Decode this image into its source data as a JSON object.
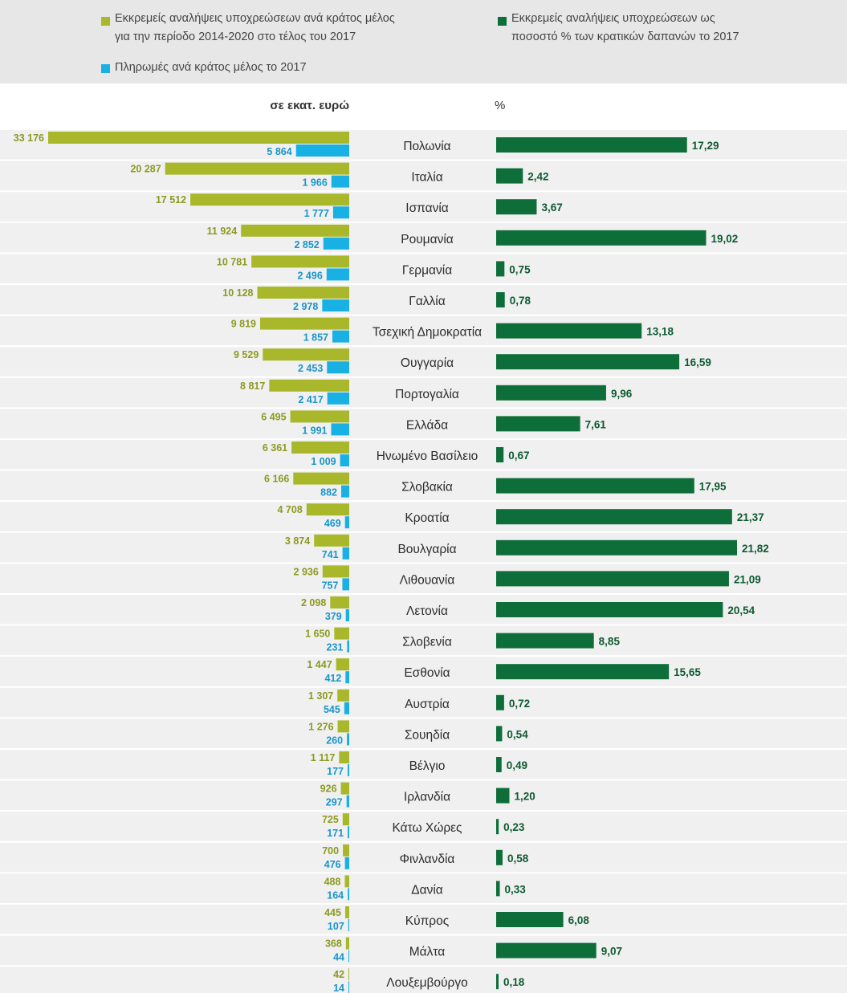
{
  "colors": {
    "commitments": "#a9b82b",
    "payments": "#19b0e3",
    "percent": "#0e6e3a",
    "band": "#e7e7e8",
    "row_separator": "#ffffff",
    "row_background": "#f0f0f1",
    "label_commitments": "#8c9a1f",
    "label_payments": "#1995c9",
    "label_percent": "#0e5a30"
  },
  "legend": {
    "commitments_label": "Εκκρεμείς αναλήψεις υποχρεώσεων ανά κράτος μέλος για την περίοδο 2014-2020 στο τέλος του 2017",
    "payments_label": "Πληρωμές ανά κράτος μέλος το 2017",
    "percent_label": "Εκκρεμείς αναλήψεις υποχρεώσεων ως ποσοστό % των κρατικών δαπανών το 2017"
  },
  "units": {
    "left": "σε εκατ. ευρώ",
    "right": "%"
  },
  "chart_data": {
    "type": "bar",
    "orientation": "horizontal",
    "categories": [
      "Πολωνία",
      "Ιταλία",
      "Ισπανία",
      "Ρουμανία",
      "Γερμανία",
      "Γαλλία",
      "Τσεχική Δημοκρατία",
      "Ουγγαρία",
      "Πορτογαλία",
      "Ελλάδα",
      "Ηνωμένο Βασίλειο",
      "Σλοβακία",
      "Κροατία",
      "Βουλγαρία",
      "Λιθουανία",
      "Λετονία",
      "Σλοβενία",
      "Εσθονία",
      "Αυστρία",
      "Σουηδία",
      "Βέλγιο",
      "Ιρλανδία",
      "Κάτω Χώρες",
      "Φινλανδία",
      "Δανία",
      "Κύπρος",
      "Μάλτα",
      "Λουξεμβούργο"
    ],
    "series": [
      {
        "name": "Εκκρεμείς αναλήψεις υποχρεώσεων ανά κράτος μέλος για την περίοδο 2014-2020 στο τέλος του 2017",
        "unit": "σε εκατ. ευρώ",
        "values": [
          33176,
          20287,
          17512,
          11924,
          10781,
          10128,
          9819,
          9529,
          8817,
          6495,
          6361,
          6166,
          4708,
          3874,
          2936,
          2098,
          1650,
          1447,
          1307,
          1276,
          1117,
          926,
          725,
          700,
          488,
          445,
          368,
          42
        ],
        "labels": [
          "33 176",
          "20 287",
          "17 512",
          "11 924",
          "10 781",
          "10 128",
          "9 819",
          "9 529",
          "8 817",
          "6 495",
          "6 361",
          "6 166",
          "4 708",
          "3 874",
          "2 936",
          "2 098",
          "1 650",
          "1 447",
          "1 307",
          "1 276",
          "1 117",
          "926",
          "725",
          "700",
          "488",
          "445",
          "368",
          "42"
        ]
      },
      {
        "name": "Πληρωμές ανά κράτος μέλος το 2017",
        "unit": "σε εκατ. ευρώ",
        "values": [
          5864,
          1966,
          1777,
          2852,
          2496,
          2978,
          1857,
          2453,
          2417,
          1991,
          1009,
          882,
          469,
          741,
          757,
          379,
          231,
          412,
          545,
          260,
          177,
          297,
          171,
          476,
          164,
          107,
          44,
          14
        ],
        "labels": [
          "5 864",
          "1 966",
          "1 777",
          "2 852",
          "2 496",
          "2 978",
          "1 857",
          "2 453",
          "2 417",
          "1 991",
          "1 009",
          "882",
          "469",
          "741",
          "757",
          "379",
          "231",
          "412",
          "545",
          "260",
          "177",
          "297",
          "171",
          "476",
          "164",
          "107",
          "44",
          "14"
        ]
      },
      {
        "name": "Εκκρεμείς αναλήψεις υποχρεώσεων ως ποσοστό % των κρατικών δαπανών το 2017",
        "unit": "%",
        "values": [
          17.29,
          2.42,
          3.67,
          19.02,
          0.75,
          0.78,
          13.18,
          16.59,
          9.96,
          7.61,
          0.67,
          17.95,
          21.37,
          21.82,
          21.09,
          20.54,
          8.85,
          15.65,
          0.72,
          0.54,
          0.49,
          1.2,
          0.23,
          0.58,
          0.33,
          6.08,
          9.07,
          0.18
        ],
        "labels": [
          "17,29",
          "2,42",
          "3,67",
          "19,02",
          "0,75",
          "0,78",
          "13,18",
          "16,59",
          "9,96",
          "7,61",
          "0,67",
          "17,95",
          "21,37",
          "21,82",
          "21,09",
          "20,54",
          "8,85",
          "15,65",
          "0,72",
          "0,54",
          "0,49",
          "1,20",
          "0,23",
          "0,58",
          "0,33",
          "6,08",
          "9,07",
          "0,18"
        ]
      }
    ],
    "left_scale_max": 33176,
    "right_scale_max": 21.82,
    "grid": false,
    "legend_position": "top"
  }
}
